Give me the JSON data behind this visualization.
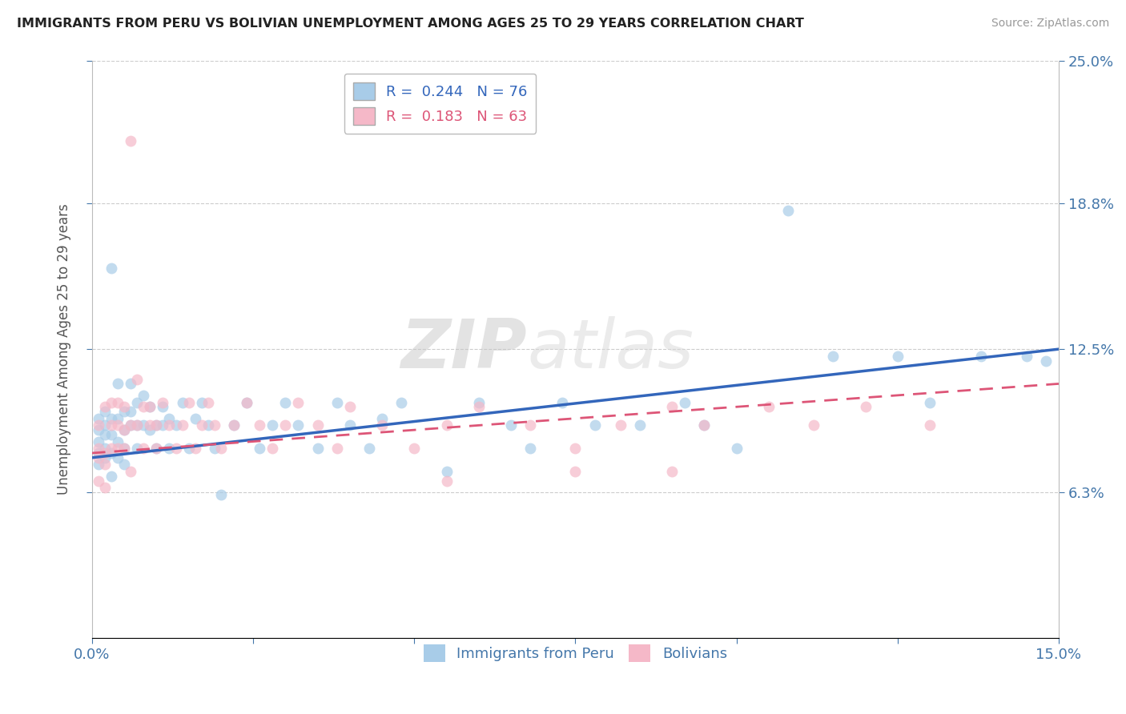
{
  "title": "IMMIGRANTS FROM PERU VS BOLIVIAN UNEMPLOYMENT AMONG AGES 25 TO 29 YEARS CORRELATION CHART",
  "source": "Source: ZipAtlas.com",
  "ylabel": "Unemployment Among Ages 25 to 29 years",
  "xlim": [
    0.0,
    0.15
  ],
  "ylim": [
    0.0,
    0.25
  ],
  "yticks_right": [
    0.063,
    0.125,
    0.188,
    0.25
  ],
  "ytick_labels_right": [
    "6.3%",
    "12.5%",
    "18.8%",
    "25.0%"
  ],
  "watermark": "ZIPatlas",
  "peru_R": 0.244,
  "peru_N": 76,
  "bolivia_R": 0.183,
  "bolivia_N": 63,
  "peru_color": "#a8cce8",
  "bolivia_color": "#f5b8c8",
  "peru_line_color": "#3366bb",
  "bolivia_line_color": "#dd5577",
  "grid_color": "#cccccc",
  "background_color": "#ffffff",
  "peru_x": [
    0.001,
    0.001,
    0.001,
    0.001,
    0.001,
    0.002,
    0.002,
    0.002,
    0.002,
    0.002,
    0.003,
    0.003,
    0.003,
    0.003,
    0.004,
    0.004,
    0.004,
    0.004,
    0.005,
    0.005,
    0.005,
    0.005,
    0.006,
    0.006,
    0.006,
    0.007,
    0.007,
    0.007,
    0.008,
    0.008,
    0.009,
    0.009,
    0.01,
    0.01,
    0.011,
    0.011,
    0.012,
    0.012,
    0.013,
    0.014,
    0.015,
    0.016,
    0.017,
    0.018,
    0.019,
    0.02,
    0.022,
    0.024,
    0.026,
    0.028,
    0.03,
    0.032,
    0.035,
    0.038,
    0.04,
    0.043,
    0.045,
    0.048,
    0.055,
    0.06,
    0.065,
    0.068,
    0.073,
    0.078,
    0.085,
    0.092,
    0.095,
    0.1,
    0.108,
    0.115,
    0.125,
    0.13,
    0.138,
    0.145,
    0.148,
    0.003
  ],
  "peru_y": [
    0.08,
    0.09,
    0.095,
    0.075,
    0.085,
    0.082,
    0.092,
    0.098,
    0.078,
    0.088,
    0.07,
    0.095,
    0.088,
    0.08,
    0.11,
    0.095,
    0.085,
    0.078,
    0.098,
    0.09,
    0.082,
    0.075,
    0.11,
    0.098,
    0.092,
    0.082,
    0.092,
    0.102,
    0.092,
    0.105,
    0.09,
    0.1,
    0.082,
    0.092,
    0.1,
    0.092,
    0.082,
    0.095,
    0.092,
    0.102,
    0.082,
    0.095,
    0.102,
    0.092,
    0.082,
    0.062,
    0.092,
    0.102,
    0.082,
    0.092,
    0.102,
    0.092,
    0.082,
    0.102,
    0.092,
    0.082,
    0.095,
    0.102,
    0.072,
    0.102,
    0.092,
    0.082,
    0.102,
    0.092,
    0.092,
    0.102,
    0.092,
    0.082,
    0.185,
    0.122,
    0.122,
    0.102,
    0.122,
    0.122,
    0.12,
    0.16
  ],
  "bolivia_x": [
    0.001,
    0.001,
    0.001,
    0.001,
    0.002,
    0.002,
    0.002,
    0.002,
    0.003,
    0.003,
    0.003,
    0.004,
    0.004,
    0.004,
    0.005,
    0.005,
    0.005,
    0.006,
    0.006,
    0.006,
    0.007,
    0.007,
    0.008,
    0.008,
    0.009,
    0.009,
    0.01,
    0.01,
    0.011,
    0.012,
    0.013,
    0.014,
    0.015,
    0.016,
    0.017,
    0.018,
    0.019,
    0.02,
    0.022,
    0.024,
    0.026,
    0.028,
    0.03,
    0.032,
    0.035,
    0.038,
    0.04,
    0.045,
    0.05,
    0.055,
    0.06,
    0.068,
    0.075,
    0.082,
    0.09,
    0.095,
    0.105,
    0.112,
    0.12,
    0.13,
    0.055,
    0.075,
    0.09
  ],
  "bolivia_y": [
    0.082,
    0.092,
    0.078,
    0.068,
    0.08,
    0.1,
    0.075,
    0.065,
    0.092,
    0.102,
    0.082,
    0.092,
    0.102,
    0.082,
    0.09,
    0.082,
    0.1,
    0.092,
    0.215,
    0.072,
    0.112,
    0.092,
    0.082,
    0.1,
    0.092,
    0.1,
    0.082,
    0.092,
    0.102,
    0.092,
    0.082,
    0.092,
    0.102,
    0.082,
    0.092,
    0.102,
    0.092,
    0.082,
    0.092,
    0.102,
    0.092,
    0.082,
    0.092,
    0.102,
    0.092,
    0.082,
    0.1,
    0.092,
    0.082,
    0.092,
    0.1,
    0.092,
    0.082,
    0.092,
    0.1,
    0.092,
    0.1,
    0.092,
    0.1,
    0.092,
    0.068,
    0.072,
    0.072
  ]
}
